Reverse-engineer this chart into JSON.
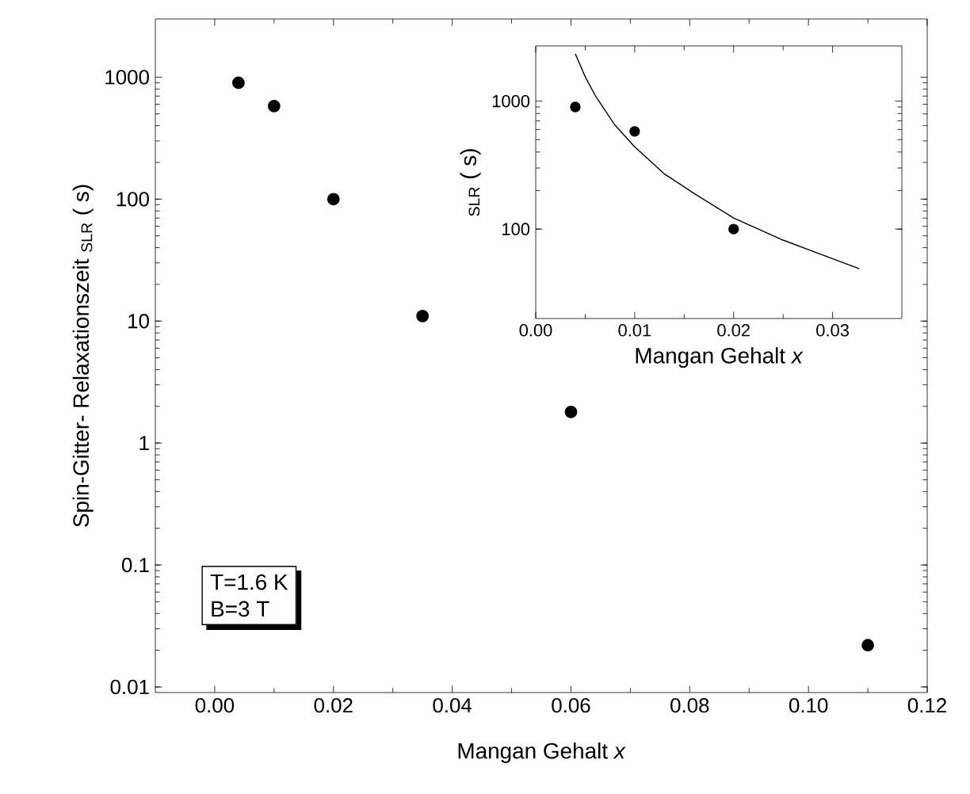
{
  "chart_data": [
    {
      "type": "scatter",
      "xlabel": "Mangan Gehalt *x*",
      "ylabel": "Spin-Gitter- Relaxationszeit $_{SLR}$ ( s)",
      "log": true,
      "marker": "circle",
      "xlim": [
        -0.01,
        0.12
      ],
      "ylim": [
        0.009,
        3000
      ],
      "xticks": [
        {
          "value": 0,
          "label": "0.00"
        },
        {
          "value": 0.02,
          "label": "0.02"
        },
        {
          "value": 0.04,
          "label": "0.04"
        },
        {
          "value": 0.06,
          "label": "0.06"
        },
        {
          "value": 0.08,
          "label": "0.08"
        },
        {
          "value": 0.1,
          "label": "0.10"
        },
        {
          "value": 0.12,
          "label": "0.12"
        }
      ],
      "yticks": [
        0.01,
        0.1,
        1,
        10,
        100,
        1000
      ],
      "annotations": [
        "T=1.6 K",
        "B=3 T"
      ],
      "series": [
        {
          "color": "#000000",
          "x": [
            0.004,
            0.01,
            0.02,
            0.035,
            0.06,
            0.11
          ],
          "values": [
            900,
            580,
            100,
            11,
            1.8,
            0.022
          ]
        }
      ]
    },
    {
      "type": "scatter",
      "xlabel": "Mangan Gehalt *x*",
      "ylabel": "$_{SLR}$ ( s)",
      "log": true,
      "marker": "circle",
      "xlim": [
        0,
        0.037
      ],
      "ylim": [
        20,
        2700
      ],
      "xticks": [
        {
          "value": 0,
          "label": "0.00"
        },
        {
          "value": 0.01,
          "label": "0.01"
        },
        {
          "value": 0.02,
          "label": "0.02"
        },
        {
          "value": 0.03,
          "label": "0.03"
        }
      ],
      "yticks": [
        100,
        1000
      ],
      "series": [
        {
          "color": "#000000",
          "x": [
            0.004,
            0.01,
            0.02
          ],
          "values": [
            900,
            580,
            100
          ]
        },
        {
          "type": "line",
          "color": "#000000",
          "line_style": "solid",
          "marker": "none",
          "x": [
            0.004,
            0.005,
            0.006,
            0.008,
            0.01,
            0.013,
            0.016,
            0.02,
            0.025,
            0.0327
          ],
          "values": [
            2340,
            1550,
            1110,
            650,
            440,
            270,
            190,
            122,
            82,
            49
          ]
        }
      ]
    }
  ]
}
